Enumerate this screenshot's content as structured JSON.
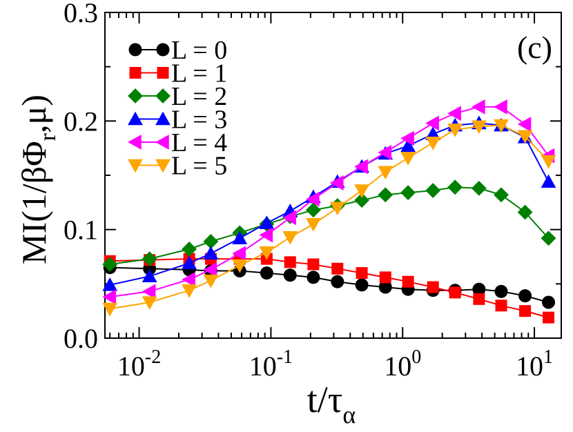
{
  "chart_data": {
    "type": "line",
    "panel_label": "(c)",
    "xlabel": "t/τ",
    "xlabel_sub": "α",
    "ylabel": "MI(1/βΦ",
    "ylabel_sub": "r",
    "ylabel_end": ",μ)",
    "x_scale": "log",
    "xlim": [
      0.0055,
      16
    ],
    "ylim": [
      0.0,
      0.3
    ],
    "yticks": [
      {
        "value": 0.0,
        "label": "0.0"
      },
      {
        "value": 0.1,
        "label": "0.1"
      },
      {
        "value": 0.2,
        "label": "0.2"
      },
      {
        "value": 0.3,
        "label": "0.3"
      }
    ],
    "xticks": [
      {
        "value": 0.01,
        "base": "10",
        "exp": "-2"
      },
      {
        "value": 0.1,
        "base": "10",
        "exp": "-1"
      },
      {
        "value": 1,
        "base": "10",
        "exp": "0"
      },
      {
        "value": 10,
        "base": "10",
        "exp": "1"
      }
    ],
    "x": [
      0.006,
      0.012,
      0.024,
      0.035,
      0.058,
      0.093,
      0.14,
      0.21,
      0.32,
      0.49,
      0.74,
      1.1,
      1.7,
      2.5,
      3.8,
      5.6,
      8.5,
      12.8
    ],
    "legend_position": "top-left",
    "series": [
      {
        "name": "L = 0",
        "color": "#000000",
        "marker": "circle",
        "values": [
          0.065,
          0.064,
          0.063,
          0.062,
          0.062,
          0.06,
          0.058,
          0.056,
          0.052,
          0.049,
          0.047,
          0.045,
          0.044,
          0.044,
          0.045,
          0.043,
          0.039,
          0.033
        ]
      },
      {
        "name": "L = 1",
        "color": "#ff0000",
        "marker": "square",
        "values": [
          0.071,
          0.072,
          0.073,
          0.073,
          0.073,
          0.073,
          0.07,
          0.068,
          0.064,
          0.06,
          0.056,
          0.052,
          0.047,
          0.042,
          0.036,
          0.03,
          0.025,
          0.019
        ]
      },
      {
        "name": "L = 2",
        "color": "#008000",
        "marker": "diamond",
        "values": [
          0.068,
          0.073,
          0.082,
          0.089,
          0.097,
          0.105,
          0.112,
          0.118,
          0.122,
          0.127,
          0.132,
          0.134,
          0.136,
          0.139,
          0.138,
          0.132,
          0.116,
          0.092
        ]
      },
      {
        "name": "L = 3",
        "color": "#0000ff",
        "marker": "triangle-up",
        "values": [
          0.049,
          0.057,
          0.069,
          0.078,
          0.092,
          0.106,
          0.117,
          0.13,
          0.144,
          0.158,
          0.17,
          0.177,
          0.188,
          0.196,
          0.198,
          0.196,
          0.185,
          0.144
        ]
      },
      {
        "name": "L = 4",
        "color": "#ff00ff",
        "marker": "triangle-left",
        "values": [
          0.038,
          0.043,
          0.054,
          0.063,
          0.078,
          0.095,
          0.111,
          0.128,
          0.143,
          0.158,
          0.171,
          0.184,
          0.198,
          0.207,
          0.213,
          0.213,
          0.197,
          0.168
        ]
      },
      {
        "name": "L = 5",
        "color": "#ffa500",
        "marker": "triangle-down",
        "values": [
          0.027,
          0.033,
          0.044,
          0.053,
          0.067,
          0.079,
          0.093,
          0.105,
          0.12,
          0.136,
          0.153,
          0.166,
          0.18,
          0.192,
          0.195,
          0.196,
          0.186,
          0.163
        ]
      }
    ]
  }
}
